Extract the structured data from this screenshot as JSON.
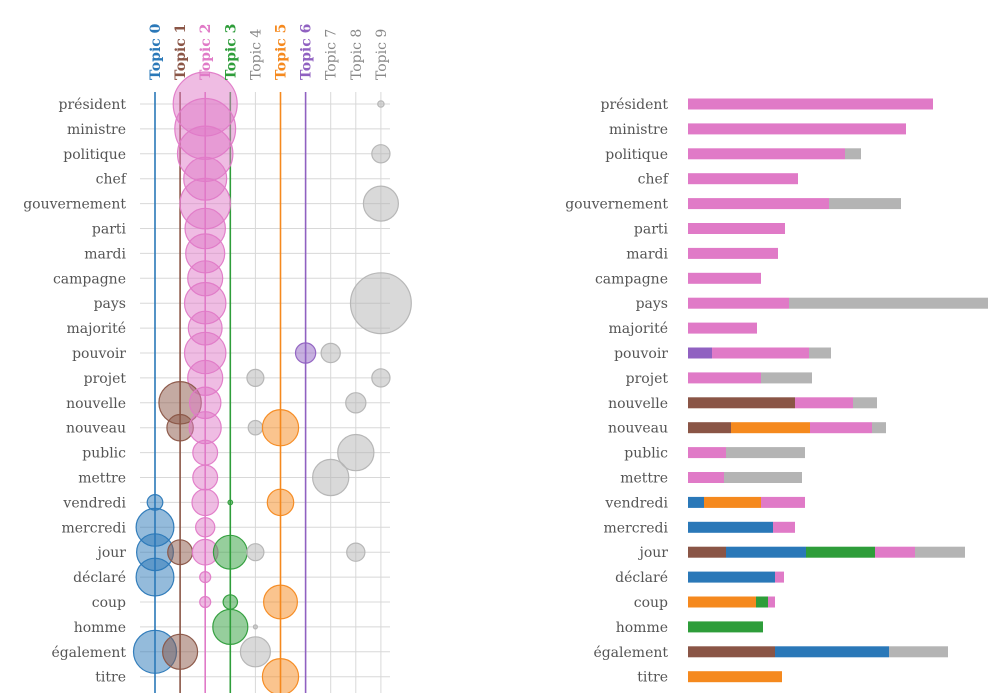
{
  "colors": {
    "topic_0": "#2a78b8",
    "topic_1": "#8a5546",
    "topic_2": "#e07ac7",
    "topic_3": "#2e9d3a",
    "topic_4": "#b4b4b4",
    "topic_5": "#f5891e",
    "topic_6": "#9061c1",
    "topic_7": "#b4b4b4",
    "topic_8": "#b4b4b4",
    "topic_9": "#b4b4b4",
    "grid": "#d8d8d8",
    "label": "#555555"
  },
  "chart_data": [
    {
      "type": "scatter",
      "topics": [
        {
          "name": "Topic 0",
          "color": "#2a78b8",
          "bold": true
        },
        {
          "name": "Topic 1",
          "color": "#8a5546",
          "bold": true
        },
        {
          "name": "Topic 2",
          "color": "#e07ac7",
          "bold": true
        },
        {
          "name": "Topic 3",
          "color": "#2e9d3a",
          "bold": true
        },
        {
          "name": "Topic 4",
          "color": "#888888",
          "bold": false
        },
        {
          "name": "Topic 5",
          "color": "#f5891e",
          "bold": true
        },
        {
          "name": "Topic 6",
          "color": "#9061c1",
          "bold": true
        },
        {
          "name": "Topic 7",
          "color": "#888888",
          "bold": false
        },
        {
          "name": "Topic 8",
          "color": "#888888",
          "bold": false
        },
        {
          "name": "Topic 9",
          "color": "#888888",
          "bold": false
        }
      ],
      "words": [
        "président",
        "ministre",
        "politique",
        "chef",
        "gouvernement",
        "parti",
        "mardi",
        "campagne",
        "pays",
        "majorité",
        "pouvoir",
        "projet",
        "nouvelle",
        "nouveau",
        "public",
        "mettre",
        "vendredi",
        "mercredi",
        "jour",
        "déclaré",
        "coup",
        "homme",
        "également",
        "titre"
      ],
      "points": [
        {
          "word": "président",
          "topic": 2,
          "weight": 1.0
        },
        {
          "word": "président",
          "topic": 9,
          "weight": 0.01
        },
        {
          "word": "ministre",
          "topic": 2,
          "weight": 0.9
        },
        {
          "word": "politique",
          "topic": 2,
          "weight": 0.75
        },
        {
          "word": "politique",
          "topic": 9,
          "weight": 0.08
        },
        {
          "word": "chef",
          "topic": 2,
          "weight": 0.45
        },
        {
          "word": "gouvernement",
          "topic": 2,
          "weight": 0.62
        },
        {
          "word": "gouvernement",
          "topic": 9,
          "weight": 0.3
        },
        {
          "word": "parti",
          "topic": 2,
          "weight": 0.4
        },
        {
          "word": "mardi",
          "topic": 2,
          "weight": 0.37
        },
        {
          "word": "campagne",
          "topic": 2,
          "weight": 0.3
        },
        {
          "word": "pays",
          "topic": 2,
          "weight": 0.42
        },
        {
          "word": "pays",
          "topic": 9,
          "weight": 0.9
        },
        {
          "word": "majorité",
          "topic": 2,
          "weight": 0.28
        },
        {
          "word": "pouvoir",
          "topic": 2,
          "weight": 0.42
        },
        {
          "word": "pouvoir",
          "topic": 6,
          "weight": 0.1
        },
        {
          "word": "pouvoir",
          "topic": 7,
          "weight": 0.09
        },
        {
          "word": "projet",
          "topic": 2,
          "weight": 0.3
        },
        {
          "word": "projet",
          "topic": 4,
          "weight": 0.07
        },
        {
          "word": "projet",
          "topic": 9,
          "weight": 0.08
        },
        {
          "word": "nouvelle",
          "topic": 1,
          "weight": 0.44
        },
        {
          "word": "nouvelle",
          "topic": 2,
          "weight": 0.24
        },
        {
          "word": "nouvelle",
          "topic": 8,
          "weight": 0.1
        },
        {
          "word": "nouveau",
          "topic": 1,
          "weight": 0.17
        },
        {
          "word": "nouveau",
          "topic": 2,
          "weight": 0.25
        },
        {
          "word": "nouveau",
          "topic": 4,
          "weight": 0.05
        },
        {
          "word": "nouveau",
          "topic": 5,
          "weight": 0.32
        },
        {
          "word": "public",
          "topic": 2,
          "weight": 0.15
        },
        {
          "word": "public",
          "topic": 8,
          "weight": 0.32
        },
        {
          "word": "mettre",
          "topic": 2,
          "weight": 0.15
        },
        {
          "word": "mettre",
          "topic": 7,
          "weight": 0.32
        },
        {
          "word": "vendredi",
          "topic": 0,
          "weight": 0.06
        },
        {
          "word": "vendredi",
          "topic": 2,
          "weight": 0.17
        },
        {
          "word": "vendredi",
          "topic": 3,
          "weight": 0.005
        },
        {
          "word": "vendredi",
          "topic": 5,
          "weight": 0.17
        },
        {
          "word": "mercredi",
          "topic": 0,
          "weight": 0.35
        },
        {
          "word": "mercredi",
          "topic": 2,
          "weight": 0.09
        },
        {
          "word": "jour",
          "topic": 0,
          "weight": 0.33
        },
        {
          "word": "jour",
          "topic": 1,
          "weight": 0.15
        },
        {
          "word": "jour",
          "topic": 2,
          "weight": 0.16
        },
        {
          "word": "jour",
          "topic": 3,
          "weight": 0.28
        },
        {
          "word": "jour",
          "topic": 4,
          "weight": 0.07
        },
        {
          "word": "jour",
          "topic": 8,
          "weight": 0.08
        },
        {
          "word": "déclaré",
          "topic": 0,
          "weight": 0.35
        },
        {
          "word": "déclaré",
          "topic": 2,
          "weight": 0.03
        },
        {
          "word": "coup",
          "topic": 2,
          "weight": 0.03
        },
        {
          "word": "coup",
          "topic": 3,
          "weight": 0.05
        },
        {
          "word": "coup",
          "topic": 5,
          "weight": 0.28
        },
        {
          "word": "homme",
          "topic": 3,
          "weight": 0.3
        },
        {
          "word": "homme",
          "topic": 4,
          "weight": 0.003
        },
        {
          "word": "également",
          "topic": 0,
          "weight": 0.45
        },
        {
          "word": "également",
          "topic": 1,
          "weight": 0.3
        },
        {
          "word": "également",
          "topic": 4,
          "weight": 0.22
        },
        {
          "word": "titre",
          "topic": 5,
          "weight": 0.32
        }
      ]
    },
    {
      "type": "bar",
      "orientation": "horizontal",
      "stacked": true,
      "categories": [
        "président",
        "ministre",
        "politique",
        "chef",
        "gouvernement",
        "parti",
        "mardi",
        "campagne",
        "pays",
        "majorité",
        "pouvoir",
        "projet",
        "nouvelle",
        "nouveau",
        "public",
        "mettre",
        "vendredi",
        "mercredi",
        "jour",
        "déclaré",
        "coup",
        "homme",
        "également",
        "titre"
      ],
      "segments": [
        [
          {
            "topic": 2,
            "value": 245
          }
        ],
        [
          {
            "topic": 2,
            "value": 218
          }
        ],
        [
          {
            "topic": 2,
            "value": 157
          },
          {
            "topic": 9,
            "value": 16
          }
        ],
        [
          {
            "topic": 2,
            "value": 110
          }
        ],
        [
          {
            "topic": 2,
            "value": 141
          },
          {
            "topic": 9,
            "value": 72
          }
        ],
        [
          {
            "topic": 2,
            "value": 97
          }
        ],
        [
          {
            "topic": 2,
            "value": 90
          }
        ],
        [
          {
            "topic": 2,
            "value": 73
          }
        ],
        [
          {
            "topic": 2,
            "value": 101
          },
          {
            "topic": 9,
            "value": 199
          }
        ],
        [
          {
            "topic": 2,
            "value": 69
          }
        ],
        [
          {
            "topic": 6,
            "value": 24
          },
          {
            "topic": 2,
            "value": 97
          },
          {
            "topic": 7,
            "value": 22
          }
        ],
        [
          {
            "topic": 2,
            "value": 73
          },
          {
            "topic": 4,
            "value": 51
          }
        ],
        [
          {
            "topic": 1,
            "value": 107
          },
          {
            "topic": 2,
            "value": 58
          },
          {
            "topic": 8,
            "value": 24
          }
        ],
        [
          {
            "topic": 1,
            "value": 43
          },
          {
            "topic": 5,
            "value": 79
          },
          {
            "topic": 2,
            "value": 62
          },
          {
            "topic": 4,
            "value": 14
          }
        ],
        [
          {
            "topic": 2,
            "value": 38
          },
          {
            "topic": 8,
            "value": 79
          }
        ],
        [
          {
            "topic": 2,
            "value": 36
          },
          {
            "topic": 7,
            "value": 78
          }
        ],
        [
          {
            "topic": 0,
            "value": 16
          },
          {
            "topic": 5,
            "value": 57
          },
          {
            "topic": 2,
            "value": 44
          }
        ],
        [
          {
            "topic": 0,
            "value": 85
          },
          {
            "topic": 2,
            "value": 22
          }
        ],
        [
          {
            "topic": 1,
            "value": 38
          },
          {
            "topic": 0,
            "value": 80
          },
          {
            "topic": 3,
            "value": 69
          },
          {
            "topic": 2,
            "value": 40
          },
          {
            "topic": 8,
            "value": 50
          }
        ],
        [
          {
            "topic": 0,
            "value": 87
          },
          {
            "topic": 2,
            "value": 9
          }
        ],
        [
          {
            "topic": 5,
            "value": 68
          },
          {
            "topic": 3,
            "value": 12
          },
          {
            "topic": 2,
            "value": 7
          }
        ],
        [
          {
            "topic": 3,
            "value": 75
          }
        ],
        [
          {
            "topic": 1,
            "value": 87
          },
          {
            "topic": 0,
            "value": 114
          },
          {
            "topic": 4,
            "value": 59
          }
        ],
        [
          {
            "topic": 5,
            "value": 94
          }
        ]
      ]
    }
  ]
}
